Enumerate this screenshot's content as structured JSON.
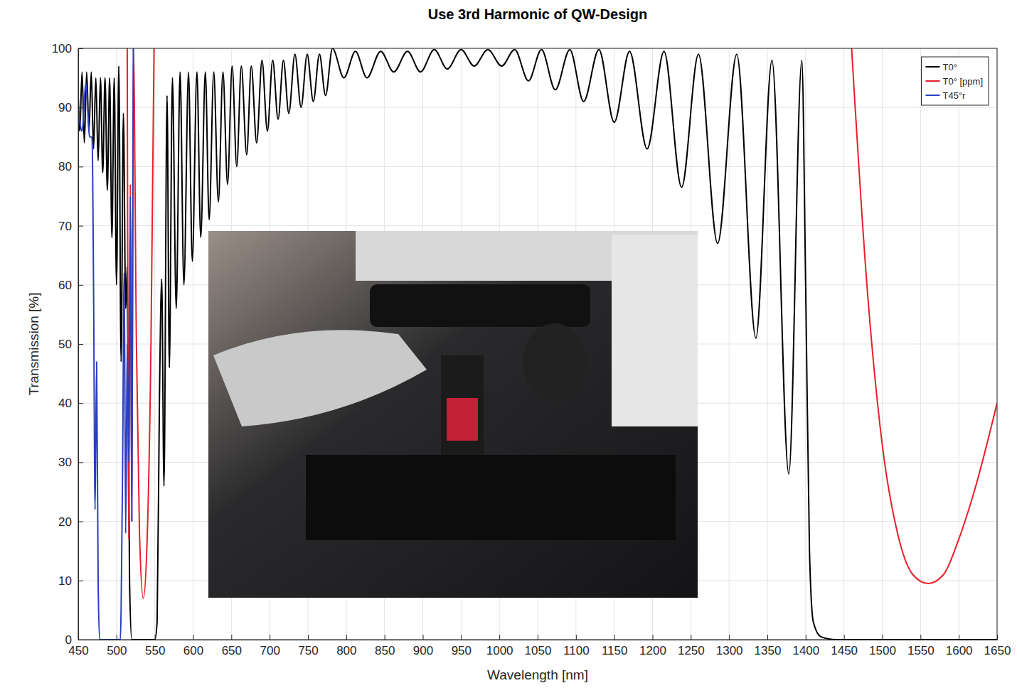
{
  "chart_data": {
    "type": "line",
    "title": "Use 3rd Harmonic of QW-Design",
    "x_label": "Wavelength [nm]",
    "y_label": "Transmission [%]",
    "xlim": [
      450,
      1650
    ],
    "ylim": [
      0,
      100
    ],
    "xticks": [
      450,
      500,
      550,
      600,
      650,
      700,
      750,
      800,
      850,
      900,
      950,
      1000,
      1050,
      1100,
      1150,
      1200,
      1250,
      1300,
      1350,
      1400,
      1450,
      1500,
      1550,
      1600,
      1650
    ],
    "yticks": [
      0,
      10,
      20,
      30,
      40,
      50,
      60,
      70,
      80,
      90,
      100
    ],
    "grid": true,
    "legend": "top-right",
    "series": [
      {
        "name": "T0°",
        "color": "#000000",
        "x": [
          450,
          452,
          455,
          458,
          461,
          464,
          467,
          470,
          473,
          476,
          479,
          482,
          485,
          488,
          491,
          494,
          497,
          500,
          503,
          506,
          509,
          512,
          514,
          517,
          520,
          550,
          553,
          556,
          559,
          562,
          566,
          569,
          573,
          578,
          583,
          588,
          594,
          599,
          605,
          610,
          616,
          621,
          627,
          633,
          639,
          645,
          651,
          657,
          663,
          670,
          676,
          683,
          690,
          697,
          704,
          711,
          718,
          725,
          733,
          741,
          749,
          757,
          765,
          773,
          782,
          797,
          812,
          827,
          845,
          862,
          880,
          897,
          915,
          932,
          950,
          967,
          985,
          1003,
          1020,
          1038,
          1055,
          1073,
          1092,
          1110,
          1130,
          1150,
          1170,
          1193,
          1215,
          1238,
          1260,
          1285,
          1310,
          1335,
          1356,
          1378,
          1395,
          1400,
          1405,
          1410,
          1420,
          1440,
          1650
        ],
        "values": [
          92,
          86,
          96,
          84,
          96,
          86,
          96,
          83,
          95,
          81,
          95,
          79,
          95,
          76,
          95,
          68,
          95,
          60,
          97,
          47,
          89,
          56,
          63,
          10,
          0,
          0,
          3,
          40,
          61,
          26,
          92,
          46,
          95,
          56,
          96,
          60,
          96,
          64,
          96,
          68,
          96,
          71,
          96,
          74,
          96,
          77,
          97,
          80,
          97,
          82,
          97,
          84,
          98,
          86,
          98,
          88,
          98,
          89,
          99,
          90,
          99,
          91,
          99,
          92,
          100,
          95,
          99.5,
          95,
          99.5,
          96,
          99.5,
          96,
          99.8,
          96.5,
          99.8,
          97,
          99.8,
          97,
          99.8,
          94.5,
          99.8,
          93,
          99.8,
          91,
          99.8,
          87.5,
          99.5,
          83,
          99.5,
          76.5,
          99,
          67,
          99,
          51,
          98,
          28,
          98,
          60,
          15,
          3,
          0.5,
          0,
          0
        ]
      },
      {
        "name": "T0° [ppm]",
        "color": "#e8202a",
        "x": [
          514,
          516,
          518,
          520,
          522,
          526,
          530,
          535,
          540,
          545,
          549,
          1000,
          1460,
          1480,
          1500,
          1520,
          1540,
          1560,
          1580,
          1600,
          1620,
          1650
        ],
        "values": [
          100,
          17,
          77,
          20,
          100,
          50,
          18,
          7,
          17,
          50,
          100,
          null,
          100,
          60,
          33,
          18,
          11,
          9.5,
          11,
          17,
          25,
          40
        ]
      },
      {
        "name": "T45°r",
        "color": "#2a3fbf",
        "x": [
          450,
          455,
          460,
          465,
          468,
          470,
          472,
          474,
          476,
          478,
          505,
          506,
          508,
          510,
          512,
          514,
          516,
          518,
          520,
          522
        ],
        "values": [
          90,
          86,
          94,
          85,
          85,
          60,
          22,
          47,
          10,
          0,
          0,
          5,
          30,
          62,
          18,
          50,
          30,
          75,
          20,
          100
        ]
      }
    ]
  }
}
